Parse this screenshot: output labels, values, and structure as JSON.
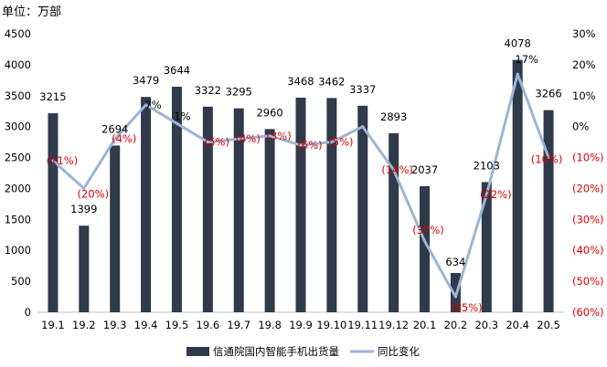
{
  "unit_label": "单位：万部",
  "chart_data": {
    "type": "bar",
    "categories": [
      "19.1",
      "19.2",
      "19.3",
      "19.4",
      "19.5",
      "19.6",
      "19.7",
      "19.8",
      "19.9",
      "19.10",
      "19.11",
      "19.12",
      "20.1",
      "20.2",
      "20.3",
      "20.4",
      "20.5"
    ],
    "series": [
      {
        "name": "信通院国内智能手机出货量",
        "type": "bar",
        "axis": "left",
        "color": "#2f3a4a",
        "values": [
          3215,
          1399,
          2694,
          3479,
          3644,
          3322,
          3295,
          2960,
          3468,
          3462,
          3337,
          2893,
          2037,
          634,
          2103,
          4078,
          3266
        ],
        "labels": [
          "3215",
          "1399",
          "2694",
          "3479",
          "3644",
          "3322",
          "3295",
          "2960",
          "3468",
          "3462",
          "3337",
          "2893",
          "2037",
          "634",
          "2103",
          "4078",
          "3266"
        ]
      },
      {
        "name": "同比变化",
        "type": "line",
        "axis": "right",
        "color": "#9bb5d6",
        "values": [
          -11,
          -20,
          -4,
          7,
          1,
          -5,
          -4,
          -3,
          -6,
          -5,
          0,
          -14,
          -37,
          -55,
          -22,
          17,
          -10
        ],
        "labels": [
          "(11%)",
          "(20%)",
          "(4%)",
          "7%",
          "1%",
          "(5%)",
          "(4%)",
          "(3%)",
          "(6%)",
          "(5%)",
          "",
          "(14%)",
          "(37%)",
          "(55%)",
          "(22%)",
          "17%",
          "(10%)"
        ]
      }
    ],
    "y_left": {
      "min": 0,
      "max": 4500,
      "step": 500,
      "ticks": [
        "0",
        "500",
        "1000",
        "1500",
        "2000",
        "2500",
        "3000",
        "3500",
        "4000",
        "4500"
      ]
    },
    "y_right": {
      "min": -60,
      "max": 30,
      "step": 10,
      "ticks": [
        "(60%)",
        "(50%)",
        "(40%)",
        "(30%)",
        "(20%)",
        "(10%)",
        "0%",
        "10%",
        "20%",
        "30%"
      ]
    },
    "legend_position": "bottom",
    "grid": false
  }
}
